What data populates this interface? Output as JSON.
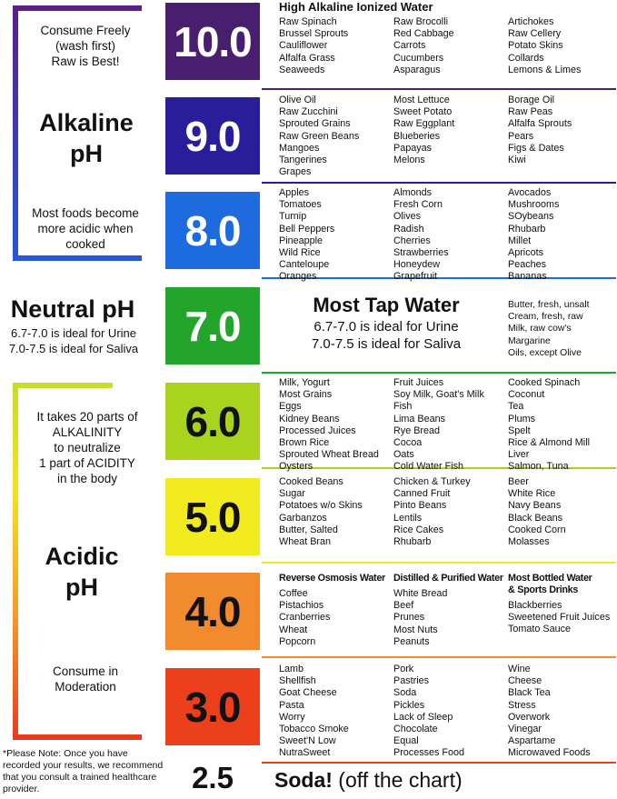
{
  "left": {
    "alk_top": "Consume Freely\n(wash first)\nRaw is Best!",
    "alk_title": "Alkaline\npH",
    "alk_bottom": "Most foods become\nmore acidic when\ncooked",
    "neutral_title": "Neutral pH",
    "neutral_sub": "6.7-7.0 is ideal for Urine\n7.0-7.5 is ideal for Saliva",
    "acid_top": "It takes 20 parts of\nALKALINITY\nto neutralize\n1 part of ACIDITY\nin the body",
    "acid_title": "Acidic\npH",
    "acid_bottom": "Consume in\nModeration",
    "note": "*Please Note: Once you have\nrecorded your results, we recommend\nthat you consult a trained healthcare\nprovider."
  },
  "colors": {
    "alk_bracket_top": "#5b1e8a",
    "alk_bracket_bottom": "#2458d6",
    "acid_bracket_top": "#c8dc2a",
    "acid_bracket_bottom": "#e83a1e"
  },
  "levels": [
    {
      "ph": "10.0",
      "color": "#4a1e6e",
      "line": "#4a1e6e"
    },
    {
      "ph": "9.0",
      "color": "#2a1d9a",
      "line": "#2a1d9a"
    },
    {
      "ph": "8.0",
      "color": "#1e6be0",
      "line": "#1e6be0"
    },
    {
      "ph": "7.0",
      "color": "#23a42a",
      "line": "#23a42a"
    },
    {
      "ph": "6.0",
      "color": "#a8d41e",
      "line": "#a8d41e"
    },
    {
      "ph": "5.0",
      "color": "#f1ea1e",
      "line": "#f1ea1e"
    },
    {
      "ph": "4.0",
      "color": "#f28a2e",
      "line": "#f28a2e"
    },
    {
      "ph": "3.0",
      "color": "#ec3f1c",
      "line": "#ec3f1c"
    }
  ],
  "ph_2_5": "2.5",
  "soda_bold": "Soda!",
  "soda_rest": " (off the chart)",
  "neutral_center": {
    "title": "Most Tap Water",
    "line1": "6.7-7.0 is ideal for Urine",
    "line2": "7.0-7.5 is ideal for Saliva"
  },
  "row10": {
    "header": "High Alkaline Ionized Water",
    "c1": [
      "Raw Spinach",
      "Brussel Sprouts",
      "Cauliflower",
      "Alfalfa Grass",
      "Seaweeds"
    ],
    "c2": [
      "Raw Brocolli",
      "Red Cabbage",
      "Carrots",
      "Cucumbers",
      "Asparagus"
    ],
    "c3": [
      "Artichokes",
      "Raw Cellery",
      "Potato Skins",
      "Collards",
      "Lemons & Limes"
    ]
  },
  "row9": {
    "c1": [
      "Olive Oil",
      "Raw Zucchini",
      "Sprouted Grains",
      "Raw Green Beans",
      "Mangoes",
      "Tangerines",
      "Grapes"
    ],
    "c2": [
      "Most Lettuce",
      "Sweet Potato",
      "Raw Eggplant",
      "Blueberies",
      "Papayas",
      "Melons"
    ],
    "c3": [
      "Borage Oil",
      "Raw Peas",
      "Alfalfa Sprouts",
      "Pears",
      "Figs & Dates",
      "Kiwi"
    ]
  },
  "row8": {
    "c1": [
      "Apples",
      "Tomatoes",
      "Turnip",
      "Bell Peppers",
      "Pineapple",
      "Wild Rice",
      "Canteloupe",
      "Oranges"
    ],
    "c2": [
      "Almonds",
      "Fresh Corn",
      "Olives",
      "Radish",
      "Cherries",
      "Strawberries",
      "Honeydew",
      "Grapefruit"
    ],
    "c3": [
      "Avocados",
      "Mushrooms",
      "SOybeans",
      "Rhubarb",
      "Millet",
      "Apricots",
      "Peaches",
      "Bananas"
    ]
  },
  "row7": {
    "c3": [
      "Butter, fresh, unsalt",
      "Cream, fresh, raw",
      "Milk, raw cow's",
      "Margarine",
      "Oils, except Olive"
    ]
  },
  "row6": {
    "c1": [
      "Milk, Yogurt",
      "Most Grains",
      "Eggs",
      "Kidney Beans",
      "Processed Juices",
      "Brown Rice",
      "Sprouted Wheat Bread",
      "Oysters"
    ],
    "c2": [
      "Fruit Juices",
      "Soy Milk, Goat's Milk",
      "Fish",
      "Lima Beans",
      "Rye Bread",
      "Cocoa",
      "Oats",
      "Cold Water Fish"
    ],
    "c3": [
      "Cooked Spinach",
      "Coconut",
      "Tea",
      "Plums",
      "Spelt",
      "Rice & Almond Mill",
      "Liver",
      "Salmon, Tuna"
    ]
  },
  "row5": {
    "c1": [
      "Cooked Beans",
      "Sugar",
      "Potatoes w/o Skins",
      "Garbanzos",
      "Butter, Salted",
      "Wheat Bran"
    ],
    "c2": [
      "Chicken & Turkey",
      "Canned Fruit",
      "Pinto Beans",
      "Lentils",
      "Rice Cakes",
      "Rhubarb"
    ],
    "c3": [
      "Beer",
      "White Rice",
      "Navy Beans",
      "Black Beans",
      "Cooked Corn",
      "Molasses"
    ]
  },
  "row4": {
    "h1": "Reverse Osmosis Water",
    "h2": "Distilled & Purified Water",
    "h3a": "Most Bottled Water",
    "h3b": "& Sports Drinks",
    "c1": [
      "Coffee",
      "Pistachios",
      "Cranberries",
      "Wheat",
      "Popcorn"
    ],
    "c2": [
      "White Bread",
      "Beef",
      "Prunes",
      "Most Nuts",
      "Peanuts"
    ],
    "c3": [
      "Blackberries",
      "Sweetened Fruit Juices",
      "Tomato Sauce"
    ]
  },
  "row3": {
    "c1": [
      "Lamb",
      "Shellfish",
      "Goat Cheese",
      "Pasta",
      "Worry",
      "Tobacco Smoke",
      "Sweet'N Low",
      "NutraSweet"
    ],
    "c2": [
      "Pork",
      "Pastries",
      "Soda",
      "Pickles",
      "Lack of Sleep",
      "Chocolate",
      "Equal",
      "Processes Food"
    ],
    "c3": [
      "Wine",
      "Cheese",
      "Black Tea",
      "Stress",
      "Overwork",
      "Vinegar",
      "Aspartame",
      "Microwaved Foods"
    ]
  }
}
